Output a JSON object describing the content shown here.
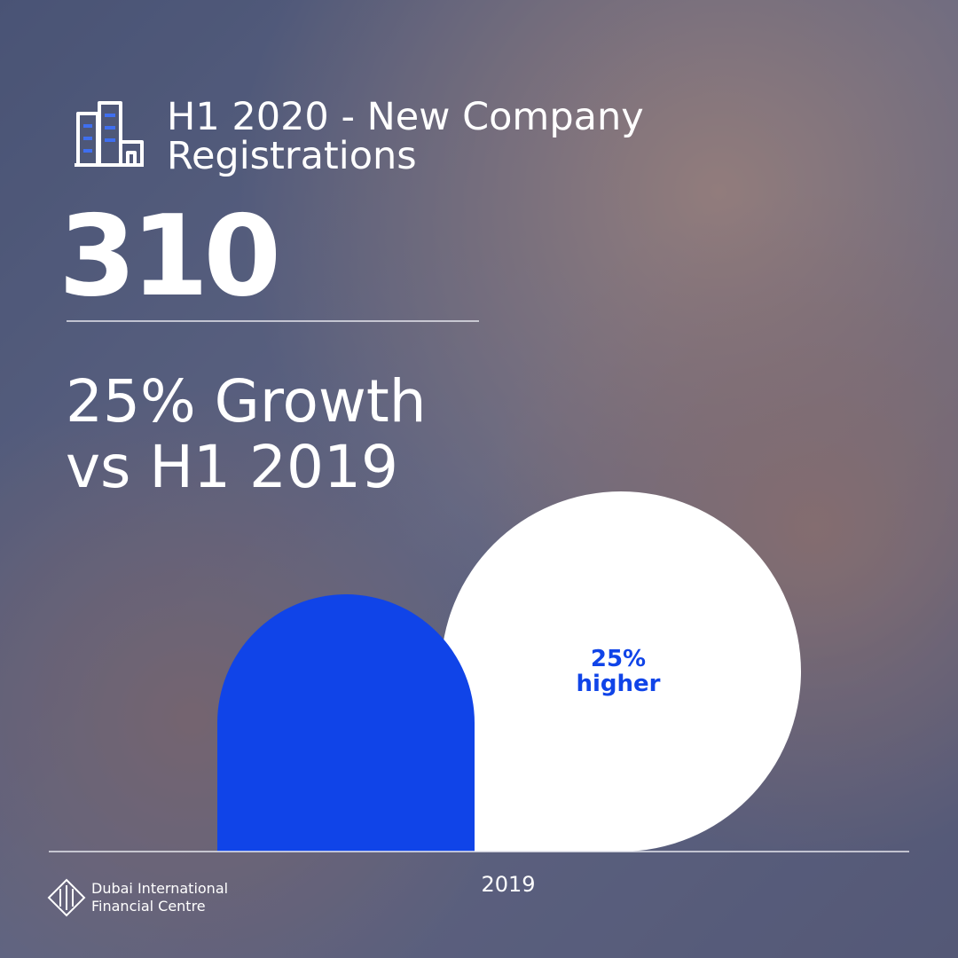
{
  "header": {
    "title": [
      "H1 2020 - New Company",
      "Registrations"
    ]
  },
  "headline_number": "310",
  "growth": {
    "lines": [
      "25% Growth",
      "vs H1 2019"
    ]
  },
  "comparison": {
    "label": [
      "25%",
      "higher"
    ],
    "year": "2019"
  },
  "footer": {
    "logo_text": [
      "Dubai International",
      "Financial Centre"
    ]
  }
}
